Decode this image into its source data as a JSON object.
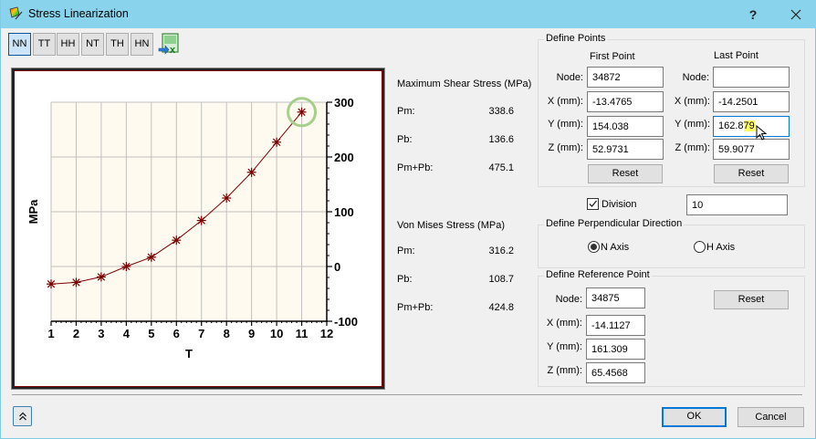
{
  "window": {
    "title": "Stress Linearization",
    "help_label": "?",
    "close_label": "✕"
  },
  "toolbar": {
    "buttons": [
      {
        "label": "NN",
        "active": true
      },
      {
        "label": "TT",
        "active": false
      },
      {
        "label": "HH",
        "active": false
      },
      {
        "label": "NT",
        "active": false
      },
      {
        "label": "TH",
        "active": false
      },
      {
        "label": "HN",
        "active": false
      }
    ],
    "export_icon": "excel-export-icon"
  },
  "chart_data": {
    "type": "line",
    "title": "",
    "xlabel": "T",
    "ylabel": "MPa",
    "x": [
      1,
      2,
      3,
      4,
      5,
      6,
      7,
      8,
      9,
      10,
      11
    ],
    "series": [
      {
        "name": "NN",
        "values": [
          -32,
          -29,
          -19,
          0,
          17,
          48,
          84,
          125,
          172,
          227,
          282
        ],
        "color": "#7a0000",
        "marker": "asterisk"
      }
    ],
    "xlim": [
      1,
      12
    ],
    "ylim": [
      -100,
      300
    ],
    "xticks": [
      "1",
      "2",
      "3",
      "4",
      "5",
      "6",
      "7",
      "8",
      "9",
      "10",
      "11",
      "12"
    ],
    "yticks": [
      "300",
      "200",
      "100",
      "0",
      "-100"
    ],
    "y_axis_position": "right",
    "grid": true,
    "plot_background": "#fffaf0",
    "highlighted_point": {
      "x": 11,
      "y": 282,
      "color": "#a6cf8b"
    }
  },
  "max_shear": {
    "title": "Maximum Shear Stress (MPa)",
    "rows": [
      {
        "label": "Pm:",
        "value": "338.6"
      },
      {
        "label": "Pb:",
        "value": "136.6"
      },
      {
        "label": "Pm+Pb:",
        "value": "475.1"
      }
    ]
  },
  "von_mises": {
    "title": "Von Mises Stress (MPa)",
    "rows": [
      {
        "label": "Pm:",
        "value": "316.2"
      },
      {
        "label": "Pb:",
        "value": "108.7"
      },
      {
        "label": "Pm+Pb:",
        "value": "424.8"
      }
    ]
  },
  "define_points": {
    "title": "Define Points",
    "first": {
      "heading": "First Point",
      "node_label": "Node:",
      "node": "34872",
      "x_label": "X (mm):",
      "x": "-13.4765",
      "y_label": "Y (mm):",
      "y": "154.038",
      "z_label": "Z (mm):",
      "z": "52.9731",
      "reset_label": "Reset"
    },
    "last": {
      "heading": "Last Point",
      "node_label": "Node:",
      "node": "",
      "x_label": "X (mm):",
      "x": "-14.2501",
      "y_label": "Y (mm):",
      "y_prefix": "162.8",
      "y_selected": "79",
      "z_label": "Z (mm):",
      "z": "59.9077",
      "reset_label": "Reset"
    }
  },
  "division": {
    "label": "Division",
    "checked": true,
    "value": "10"
  },
  "perpendicular": {
    "title": "Define Perpendicular Direction",
    "options": [
      {
        "label": "N Axis",
        "checked": true
      },
      {
        "label": "H Axis",
        "checked": false
      }
    ]
  },
  "reference_point": {
    "title": "Define Reference Point",
    "node_label": "Node:",
    "node": "34875",
    "x_label": "X (mm):",
    "x": "-14.1127",
    "y_label": "Y (mm):",
    "y": "161.309",
    "z_label": "Z (mm):",
    "z": "65.4568",
    "reset_label": "Reset"
  },
  "footer": {
    "collapse_label": "⌃",
    "ok_label": "OK",
    "cancel_label": "Cancel"
  }
}
